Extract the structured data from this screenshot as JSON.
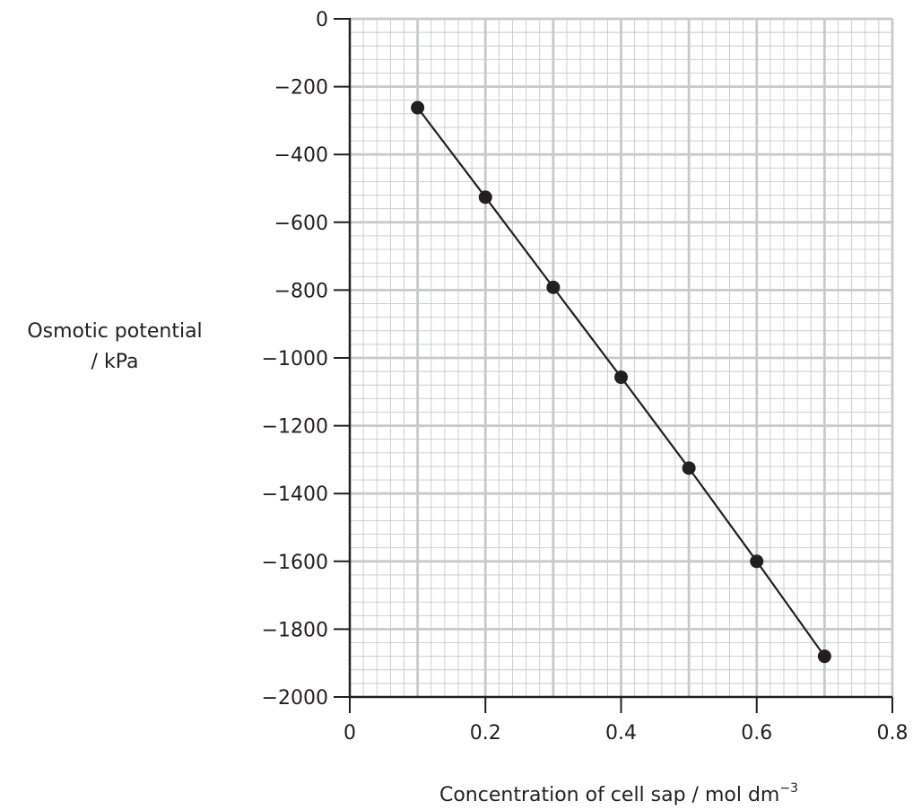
{
  "chart_data": {
    "type": "line",
    "title": "",
    "ylabel_lines": [
      "Osmotic potential",
      "/ kPa"
    ],
    "xlabel": "Concentration of cell sap / mol dm",
    "xlabel_sup": "−3",
    "xlim": [
      0,
      0.8
    ],
    "ylim": [
      -2000,
      0
    ],
    "x_ticks": [
      0,
      0.2,
      0.4,
      0.6,
      0.8
    ],
    "x_tick_labels": [
      "0",
      "0.2",
      "0.4",
      "0.6",
      "0.8"
    ],
    "y_ticks": [
      0,
      -200,
      -400,
      -600,
      -800,
      -1000,
      -1200,
      -1400,
      -1600,
      -1800,
      -2000
    ],
    "y_tick_labels": [
      "0",
      "−200",
      "−400",
      "−600",
      "−800",
      "−1000",
      "−1200",
      "−1400",
      "−1600",
      "−1800",
      "−2000"
    ],
    "grid": true,
    "x_minor_step": 0.02,
    "y_minor_step": 40,
    "series": [
      {
        "x": [
          0.1,
          0.2,
          0.3,
          0.4,
          0.5,
          0.6,
          0.7
        ],
        "y": [
          -262,
          -526,
          -792,
          -1057,
          -1325,
          -1600,
          -1880
        ]
      }
    ],
    "colors": {
      "grid": "#c8c9cb",
      "axis": "#231f20",
      "line": "#231f20",
      "marker": "#231f20"
    }
  }
}
